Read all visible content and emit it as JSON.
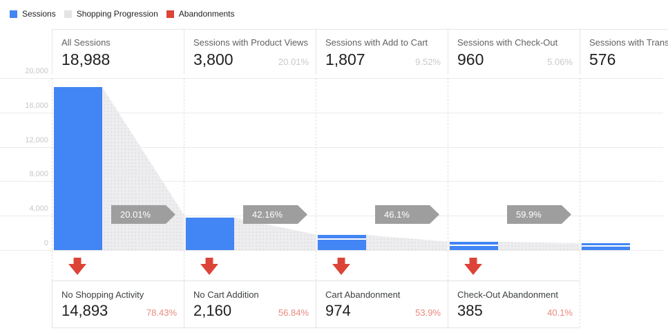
{
  "legend": {
    "items": [
      {
        "label": "Sessions",
        "color": "#4285f4"
      },
      {
        "label": "Shopping Progression",
        "color": "#e4e4e4"
      },
      {
        "label": "Abandonments",
        "color": "#db4437"
      }
    ]
  },
  "chart_data": {
    "type": "funnel",
    "title": "",
    "legend": [
      "Sessions",
      "Shopping Progression",
      "Abandonments"
    ],
    "y_axis": {
      "max": 20000,
      "tick_interval": 4000,
      "tick_labels": [
        "20,000",
        "16,000",
        "12,000",
        "8,000",
        "4,000",
        "0"
      ],
      "gridlines": true
    },
    "steps": [
      {
        "label": "All Sessions",
        "value": 18988,
        "value_text": "18,988",
        "pct_of_all": ""
      },
      {
        "label": "Sessions with Product Views",
        "value": 3800,
        "value_text": "3,800",
        "pct_of_all": "20.01%"
      },
      {
        "label": "Sessions with Add to Cart",
        "value": 1807,
        "value_text": "1,807",
        "pct_of_all": "9.52%"
      },
      {
        "label": "Sessions with Check-Out",
        "value": 960,
        "value_text": "960",
        "pct_of_all": "5.06%"
      },
      {
        "label": "Sessions with Transactions",
        "value": 576,
        "value_text": "576",
        "pct_of_all": ""
      }
    ],
    "progression_arrows": [
      "20.01%",
      "42.16%",
      "46.1%",
      "59.9%"
    ],
    "abandonments": [
      {
        "label": "No Shopping Activity",
        "value": 14893,
        "value_text": "14,893",
        "pct": "78.43%"
      },
      {
        "label": "No Cart Addition",
        "value": 2160,
        "value_text": "2,160",
        "pct": "56.84%"
      },
      {
        "label": "Cart Abandonment",
        "value": 974,
        "value_text": "974",
        "pct": "53.9%"
      },
      {
        "label": "Check-Out Abandonment",
        "value": 385,
        "value_text": "385",
        "pct": "40.1%"
      }
    ],
    "colors": {
      "sessions_bar": "#4285f4",
      "shopping_progression_fill": "#ededef",
      "progression_arrow": "#9e9e9e",
      "abandonment_arrow": "#db4437",
      "abandonment_pct_text": "#e8897e"
    }
  }
}
